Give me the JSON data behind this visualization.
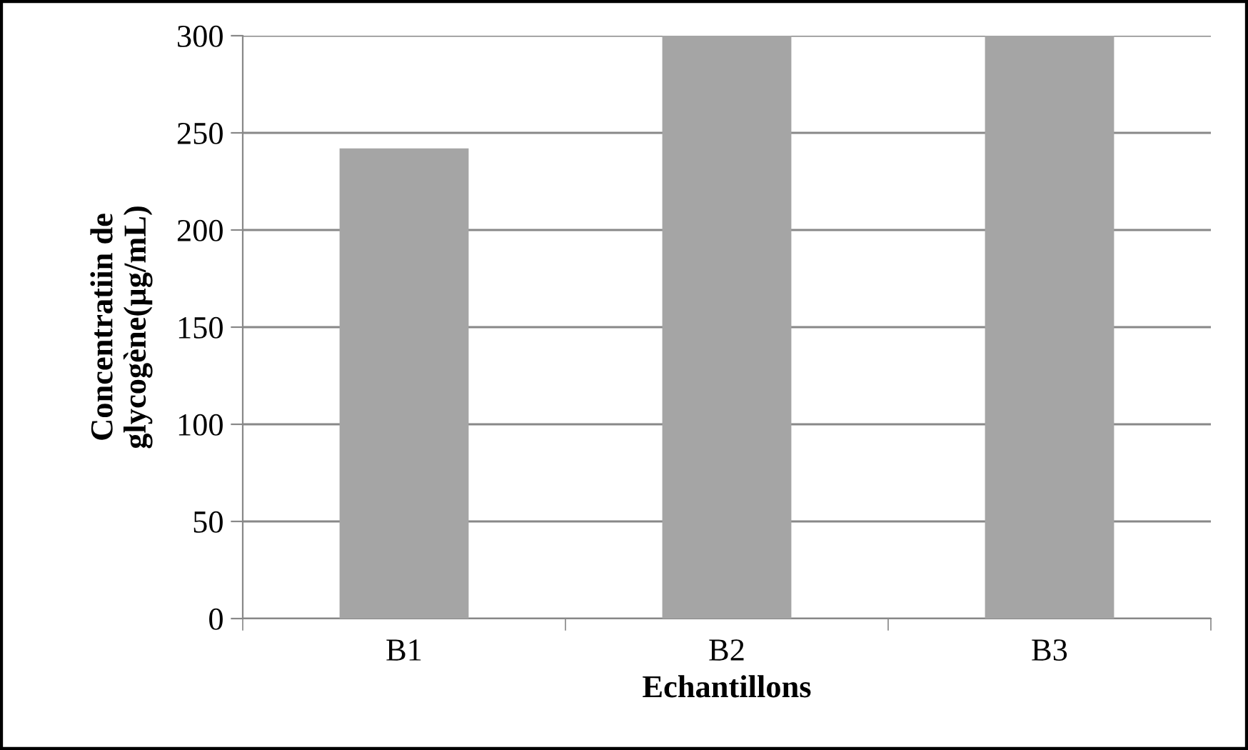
{
  "chart_data": {
    "type": "bar",
    "xlabel": "Echantillons",
    "ylabel": "Concentratiin de\nglycogène(µg/mL)",
    "categories": [
      "B1",
      "B2",
      "B3"
    ],
    "values": [
      242,
      300,
      300
    ],
    "color": "#a5a5a5",
    "ylim": [
      0,
      300
    ],
    "yticks": [
      0,
      50,
      100,
      150,
      200,
      250,
      300
    ],
    "grid": "y",
    "legend": false
  }
}
